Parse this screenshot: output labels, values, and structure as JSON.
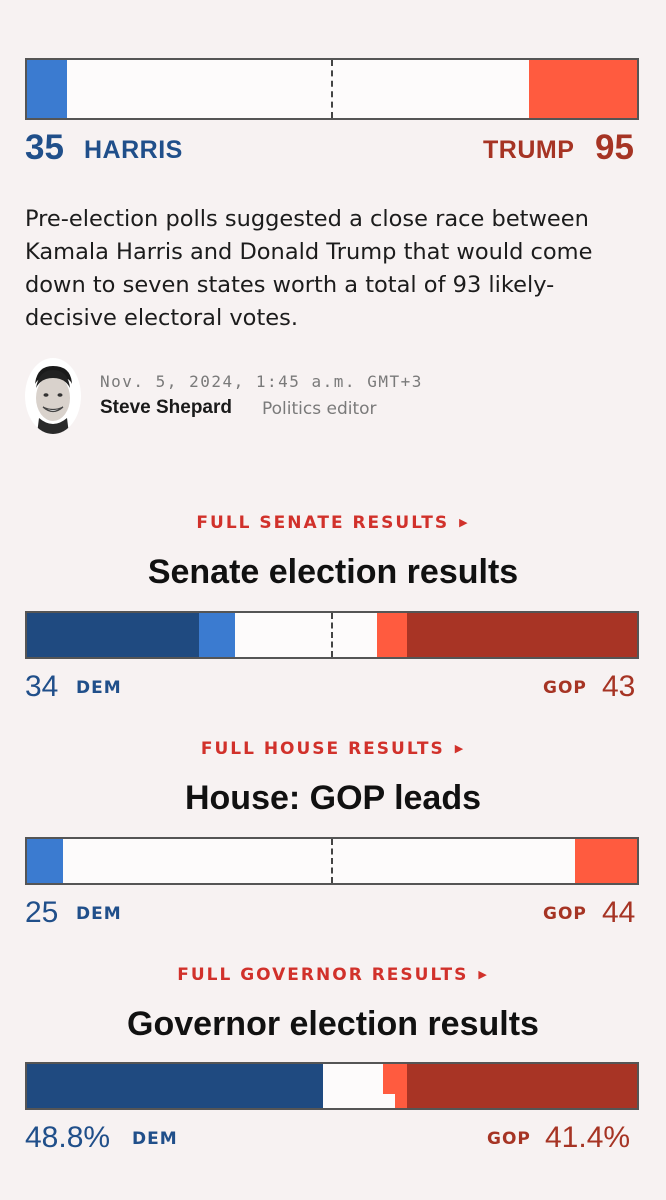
{
  "president": {
    "dem_value": 35,
    "dem_label": "HARRIS",
    "gop_value": 95,
    "gop_label": "TRUMP",
    "colors": {
      "dem": "#3b7bd0",
      "gop": "#ff5b3f"
    }
  },
  "article": {
    "summary": "Pre-election polls suggested a close race between Kamala Harris and Donald Trump that would come down to seven states worth a total of 93 likely-decisive electoral votes.",
    "timestamp": "Nov. 5, 2024, 1:45 a.m. GMT+3",
    "author": "Steve Shepard",
    "role": "Politics editor"
  },
  "senate": {
    "link_label": "FULL SENATE RESULTS",
    "title": "Senate election results",
    "dem_value": "34",
    "dem_label": "DEM",
    "gop_value": "43",
    "gop_label": "GOP"
  },
  "house": {
    "link_label": "FULL HOUSE RESULTS",
    "title": "House: GOP leads",
    "dem_value": "25",
    "dem_label": "DEM",
    "gop_value": "44",
    "gop_label": "GOP"
  },
  "governor": {
    "link_label": "FULL GOVERNOR RESULTS",
    "title": "Governor election results",
    "dem_value": "48.8%",
    "dem_label": "DEM",
    "gop_value": "41.4%",
    "gop_label": "GOP"
  },
  "icons": {
    "link_arrow": "triangle-right-icon",
    "avatar": "author-avatar"
  }
}
